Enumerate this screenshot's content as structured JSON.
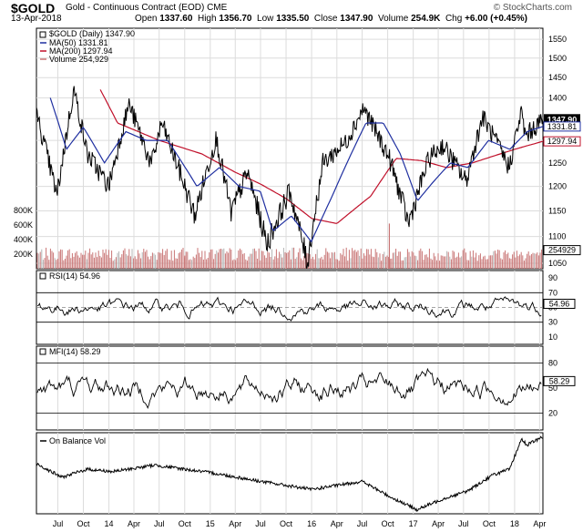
{
  "header": {
    "symbol": "$GOLD",
    "description": "Gold - Continuous Contract (EOD)",
    "exchange": "CME",
    "watermark": "© StockCharts.com",
    "date": "13-Apr-2018",
    "open_label": "Open",
    "open": "1337.60",
    "high_label": "High",
    "high": "1356.70",
    "low_label": "Low",
    "low": "1335.50",
    "close_label": "Close",
    "close": "1347.90",
    "volume_label": "Volume",
    "volume": "254.9K",
    "chg_label": "Chg",
    "chg": "+6.00 (+0.45%)"
  },
  "colors": {
    "price": "#000000",
    "ma50": "#1f2fa0",
    "ma200": "#c0102a",
    "volume": "#c87474",
    "volume_gray": "#b4b4b4",
    "indicator": "#000000"
  },
  "chart_data": [
    {
      "type": "line",
      "title": "$GOLD (Daily) 1347.90",
      "legend": [
        {
          "name": "MA(50)",
          "text": "MA(50) 1331.81",
          "color": "#1f2fa0"
        },
        {
          "name": "MA(200)",
          "text": "MA(200) 1297.94",
          "color": "#c0102a"
        },
        {
          "name": "Volume",
          "text": "Volume 254,929",
          "color": "#c87474"
        }
      ],
      "price_scale": "log",
      "y_ticks": [
        1050,
        1100,
        1150,
        1200,
        1250,
        1300,
        1350,
        1400,
        1450,
        1500,
        1550
      ],
      "ylim": [
        1040,
        1580
      ],
      "volume_ticks": [
        "200K",
        "400K",
        "600K",
        "800K"
      ],
      "volume_max": 1000000,
      "right_labels": [
        {
          "text": "1347.90",
          "value": 1347.9,
          "style": "filled"
        },
        {
          "text": "1331.81",
          "value": 1331.81,
          "style": "blue"
        },
        {
          "text": "1297.94",
          "value": 1297.94,
          "style": "red"
        },
        {
          "text": "254929",
          "value": 254929,
          "style": "volume"
        }
      ],
      "x_ticks": [
        "Jul",
        "Oct",
        "14",
        "Apr",
        "Jul",
        "Oct",
        "15",
        "Apr",
        "Jul",
        "Oct",
        "16",
        "Apr",
        "Jul",
        "Oct",
        "17",
        "Apr",
        "Jul",
        "Oct",
        "18",
        "Apr"
      ],
      "x_tick_dates": [
        "2013-07-01",
        "2013-10-01",
        "2014-01-01",
        "2014-04-01",
        "2014-07-01",
        "2014-10-01",
        "2015-01-01",
        "2015-04-01",
        "2015-07-01",
        "2015-10-01",
        "2016-01-01",
        "2016-04-01",
        "2016-07-01",
        "2016-10-01",
        "2017-01-01",
        "2017-04-01",
        "2017-07-01",
        "2017-10-01",
        "2018-01-01",
        "2018-04-01"
      ],
      "x_range": [
        "2013-04-15",
        "2018-04-13"
      ],
      "series": [
        {
          "name": "$GOLD",
          "dates": [
            "2013-04-15",
            "2013-06-28",
            "2013-08-28",
            "2013-10-15",
            "2013-12-31",
            "2014-03-14",
            "2014-06-03",
            "2014-07-10",
            "2014-11-06",
            "2015-01-22",
            "2015-03-17",
            "2015-05-15",
            "2015-07-24",
            "2015-10-14",
            "2015-12-17",
            "2016-02-11",
            "2016-05-02",
            "2016-07-06",
            "2016-10-07",
            "2016-12-15",
            "2017-02-27",
            "2017-04-17",
            "2017-07-10",
            "2017-09-08",
            "2017-12-12",
            "2018-01-25",
            "2018-02-09",
            "2018-04-13"
          ],
          "values": [
            1360,
            1180,
            1420,
            1270,
            1200,
            1385,
            1245,
            1340,
            1140,
            1305,
            1145,
            1230,
            1085,
            1190,
            1050,
            1250,
            1295,
            1375,
            1260,
            1125,
            1260,
            1290,
            1210,
            1355,
            1240,
            1365,
            1310,
            1348
          ]
        },
        {
          "name": "MA(50)",
          "dates": [
            "2013-06-04",
            "2013-08-01",
            "2013-10-01",
            "2013-12-16",
            "2014-03-03",
            "2014-05-15",
            "2014-08-01",
            "2014-11-14",
            "2015-02-03",
            "2015-04-15",
            "2015-06-30",
            "2015-08-14",
            "2015-10-20",
            "2015-12-31",
            "2016-03-15",
            "2016-07-15",
            "2016-09-15",
            "2016-11-15",
            "2017-01-16",
            "2017-03-15",
            "2017-05-15",
            "2017-07-17",
            "2017-09-29",
            "2017-12-15",
            "2018-02-15",
            "2018-04-13"
          ],
          "values": [
            1400,
            1280,
            1330,
            1250,
            1320,
            1300,
            1300,
            1200,
            1240,
            1200,
            1190,
            1110,
            1140,
            1090,
            1180,
            1340,
            1340,
            1270,
            1170,
            1210,
            1250,
            1240,
            1300,
            1280,
            1320,
            1332
          ]
        },
        {
          "name": "MA(200)",
          "dates": [
            "2013-12-01",
            "2014-02-01",
            "2014-07-01",
            "2014-12-01",
            "2015-04-01",
            "2015-07-01",
            "2015-10-01",
            "2016-01-01",
            "2016-04-01",
            "2016-08-01",
            "2016-11-01",
            "2017-02-01",
            "2017-05-01",
            "2017-08-01",
            "2017-11-01",
            "2018-01-01",
            "2018-04-13"
          ],
          "values": [
            1420,
            1340,
            1300,
            1270,
            1230,
            1205,
            1175,
            1135,
            1125,
            1180,
            1260,
            1255,
            1240,
            1250,
            1268,
            1280,
            1298
          ]
        }
      ],
      "volume_spikes": [
        {
          "date": "2016-10-07",
          "value": 620000
        },
        {
          "date": "2014-10-01",
          "value": 180000
        }
      ],
      "volume_base": 200000
    },
    {
      "type": "line",
      "title": "RSI(14) 54.96",
      "current": "54.96",
      "ylim": [
        0,
        100
      ],
      "y_ticks": [
        10,
        30,
        50,
        70,
        90
      ],
      "reference_lines": [
        70,
        50,
        30
      ],
      "series": [
        {
          "name": "RSI(14)",
          "mean": 50,
          "amplitude": 18,
          "last": 54.96
        }
      ]
    },
    {
      "type": "line",
      "title": "MFI(14) 58.29",
      "current": "58.29",
      "ylim": [
        0,
        100
      ],
      "y_ticks": [
        20,
        50,
        80
      ],
      "reference_lines": [
        80,
        20
      ],
      "series": [
        {
          "name": "MFI(14)",
          "mean": 50,
          "amplitude": 25,
          "last": 58.29
        }
      ]
    },
    {
      "type": "line",
      "title": "On Balance Vol",
      "series": [
        {
          "name": "On Balance Vol",
          "dates": [
            "2013-04-15",
            "2013-07-15",
            "2013-10-15",
            "2014-01-15",
            "2014-06-15",
            "2015-01-15",
            "2015-07-01",
            "2016-01-01",
            "2016-07-01",
            "2016-10-15",
            "2017-01-15",
            "2017-04-15",
            "2017-07-15",
            "2017-10-15",
            "2017-12-15",
            "2018-01-25",
            "2018-02-15",
            "2018-04-13"
          ],
          "values": [
            62,
            45,
            55,
            52,
            60,
            50,
            40,
            30,
            40,
            20,
            5,
            18,
            28,
            48,
            55,
            92,
            85,
            95
          ]
        }
      ]
    }
  ]
}
